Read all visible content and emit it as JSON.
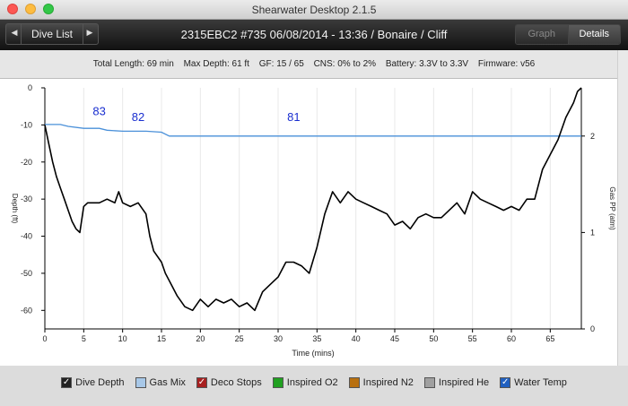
{
  "window": {
    "title": "Shearwater Desktop 2.1.5"
  },
  "toolbar": {
    "dive_list_label": "Dive List",
    "dive_title": "2315EBC2 #735 06/08/2014 - 13:36  / Bonaire / Cliff",
    "tabs": [
      {
        "label": "Graph",
        "active": false
      },
      {
        "label": "Details",
        "active": true
      }
    ]
  },
  "stats": {
    "total_length": "Total Length: 69 min",
    "max_depth": "Max Depth: 61 ft",
    "gf": "GF: 15 / 65",
    "cns": "CNS: 0% to 2%",
    "battery": "Battery: 3.3V to 3.3V",
    "firmware": "Firmware: v56"
  },
  "chart_data": {
    "type": "line",
    "xlabel": "Time (mins)",
    "ylabel": "Depth (ft)",
    "y2label": "Gas PP (atm)",
    "xlim": [
      0,
      69
    ],
    "ylim": [
      -65,
      0
    ],
    "y2lim": [
      0,
      2.5
    ],
    "x_ticks": [
      0,
      5,
      10,
      15,
      20,
      25,
      30,
      35,
      40,
      45,
      50,
      55,
      60,
      65
    ],
    "y_ticks": [
      0,
      -10,
      -20,
      -30,
      -40,
      -50,
      -60
    ],
    "y2_ticks": [
      0,
      1,
      2
    ],
    "series": [
      {
        "name": "Dive Depth",
        "color": "#000000",
        "x": [
          0,
          0.5,
          1,
          1.5,
          2,
          2.5,
          3,
          3.5,
          4,
          4.5,
          5,
          5.5,
          6,
          7,
          8,
          9,
          9.5,
          10,
          11,
          12,
          13,
          13.5,
          14,
          15,
          15.5,
          16,
          17,
          18,
          19,
          20,
          21,
          22,
          23,
          24,
          25,
          26,
          27,
          28,
          29,
          30,
          31,
          32,
          33,
          34,
          35,
          36,
          37,
          38,
          39,
          40,
          41,
          42,
          43,
          44,
          45,
          46,
          47,
          48,
          49,
          50,
          51,
          52,
          53,
          54,
          55,
          56,
          57,
          58,
          59,
          60,
          61,
          62,
          63,
          64,
          65,
          66,
          67,
          68,
          68.5,
          69
        ],
        "y": [
          -10,
          -15,
          -20,
          -24,
          -27,
          -30,
          -33,
          -36,
          -38,
          -39,
          -32,
          -31,
          -31,
          -31,
          -30,
          -31,
          -28,
          -31,
          -32,
          -31,
          -34,
          -40,
          -44,
          -47,
          -50,
          -52,
          -56,
          -59,
          -60,
          -57,
          -59,
          -57,
          -58,
          -57,
          -59,
          -58,
          -60,
          -55,
          -53,
          -51,
          -47,
          -47,
          -48,
          -50,
          -43,
          -34,
          -28,
          -31,
          -28,
          -30,
          -31,
          -32,
          -33,
          -34,
          -37,
          -36,
          -38,
          -35,
          -34,
          -35,
          -35,
          -33,
          -31,
          -34,
          -28,
          -30,
          -31,
          -32,
          -33,
          -32,
          -33,
          -30,
          -30,
          -22,
          -18,
          -14,
          -8,
          -4,
          -1,
          0
        ]
      },
      {
        "name": "Gas PP",
        "color": "#4a90d9",
        "x": [
          0,
          2,
          3,
          5,
          7,
          8,
          10,
          13,
          15,
          16,
          20,
          30,
          40,
          50,
          60,
          65,
          69
        ],
        "y": [
          2.12,
          2.12,
          2.1,
          2.08,
          2.08,
          2.06,
          2.05,
          2.05,
          2.04,
          2.0,
          2.0,
          2.0,
          2.0,
          2.0,
          2.0,
          2.0,
          2.0
        ]
      }
    ],
    "annotations": [
      {
        "text": "83",
        "x": 7,
        "y2": 2.18
      },
      {
        "text": "82",
        "x": 12,
        "y2": 2.12
      },
      {
        "text": "81",
        "x": 32,
        "y2": 2.12
      }
    ]
  },
  "legend": [
    {
      "label": "Dive Depth",
      "checked": true,
      "color": "#222222"
    },
    {
      "label": "Gas Mix",
      "checked": false,
      "color": "#a8c8e8"
    },
    {
      "label": "Deco Stops",
      "checked": true,
      "color": "#a82020"
    },
    {
      "label": "Inspired O2",
      "checked": false,
      "color": "#20a020"
    },
    {
      "label": "Inspired N2",
      "checked": false,
      "color": "#b87010"
    },
    {
      "label": "Inspired He",
      "checked": false,
      "color": "#a0a0a0"
    },
    {
      "label": "Water Temp",
      "checked": true,
      "color": "#2060c0"
    }
  ]
}
